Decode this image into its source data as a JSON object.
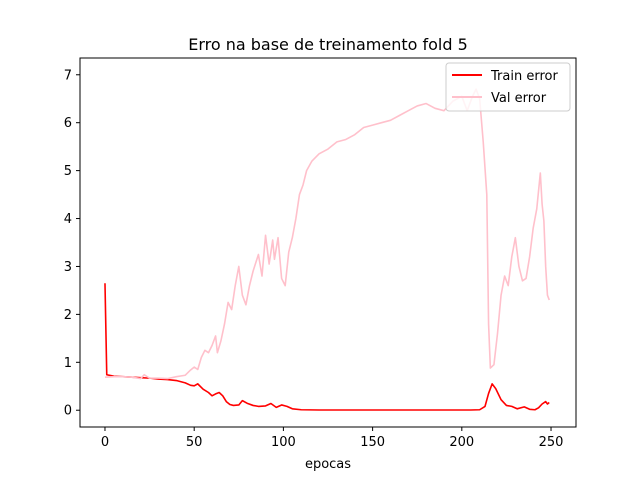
{
  "chart_data": {
    "type": "line",
    "title": "Erro na base de treinamento fold 5",
    "xlabel": "epocas",
    "ylabel": "",
    "xlim": [
      -14,
      264
    ],
    "ylim": [
      -0.35,
      7.35
    ],
    "xticks": [
      0,
      50,
      100,
      150,
      200,
      250
    ],
    "yticks": [
      0,
      1,
      2,
      3,
      4,
      5,
      6,
      7
    ],
    "legend": "top-right",
    "grid": false,
    "series": [
      {
        "name": "Train error",
        "color": "#ff0000",
        "points": [
          [
            0,
            2.65
          ],
          [
            1,
            0.74
          ],
          [
            5,
            0.71
          ],
          [
            10,
            0.7
          ],
          [
            15,
            0.69
          ],
          [
            20,
            0.68
          ],
          [
            25,
            0.67
          ],
          [
            30,
            0.65
          ],
          [
            35,
            0.64
          ],
          [
            40,
            0.62
          ],
          [
            45,
            0.57
          ],
          [
            48,
            0.52
          ],
          [
            50,
            0.51
          ],
          [
            52,
            0.55
          ],
          [
            55,
            0.44
          ],
          [
            58,
            0.37
          ],
          [
            60,
            0.3
          ],
          [
            62,
            0.34
          ],
          [
            64,
            0.37
          ],
          [
            66,
            0.3
          ],
          [
            68,
            0.18
          ],
          [
            70,
            0.12
          ],
          [
            72,
            0.1
          ],
          [
            75,
            0.11
          ],
          [
            77,
            0.2
          ],
          [
            80,
            0.14
          ],
          [
            83,
            0.1
          ],
          [
            86,
            0.08
          ],
          [
            90,
            0.09
          ],
          [
            93,
            0.14
          ],
          [
            96,
            0.06
          ],
          [
            99,
            0.11
          ],
          [
            102,
            0.08
          ],
          [
            105,
            0.03
          ],
          [
            110,
            0.01
          ],
          [
            120,
            0.005
          ],
          [
            150,
            0.005
          ],
          [
            180,
            0.005
          ],
          [
            205,
            0.005
          ],
          [
            210,
            0.01
          ],
          [
            213,
            0.08
          ],
          [
            215,
            0.35
          ],
          [
            217,
            0.55
          ],
          [
            219,
            0.45
          ],
          [
            222,
            0.22
          ],
          [
            225,
            0.1
          ],
          [
            228,
            0.08
          ],
          [
            231,
            0.03
          ],
          [
            235,
            0.07
          ],
          [
            238,
            0.02
          ],
          [
            241,
            0.01
          ],
          [
            243,
            0.05
          ],
          [
            245,
            0.13
          ],
          [
            247,
            0.18
          ],
          [
            248,
            0.13
          ],
          [
            249,
            0.16
          ]
        ]
      },
      {
        "name": "Val error",
        "color": "#ffc0cb",
        "points": [
          [
            0,
            0.69
          ],
          [
            5,
            0.7
          ],
          [
            10,
            0.7
          ],
          [
            15,
            0.69
          ],
          [
            20,
            0.66
          ],
          [
            22,
            0.74
          ],
          [
            25,
            0.67
          ],
          [
            30,
            0.67
          ],
          [
            35,
            0.66
          ],
          [
            40,
            0.7
          ],
          [
            45,
            0.73
          ],
          [
            48,
            0.84
          ],
          [
            50,
            0.9
          ],
          [
            52,
            0.85
          ],
          [
            54,
            1.1
          ],
          [
            56,
            1.25
          ],
          [
            58,
            1.2
          ],
          [
            60,
            1.35
          ],
          [
            62,
            1.55
          ],
          [
            63,
            1.2
          ],
          [
            65,
            1.45
          ],
          [
            67,
            1.8
          ],
          [
            69,
            2.25
          ],
          [
            71,
            2.1
          ],
          [
            73,
            2.6
          ],
          [
            75,
            3.0
          ],
          [
            77,
            2.4
          ],
          [
            79,
            2.2
          ],
          [
            81,
            2.6
          ],
          [
            83,
            2.9
          ],
          [
            86,
            3.25
          ],
          [
            88,
            2.8
          ],
          [
            90,
            3.65
          ],
          [
            92,
            3.05
          ],
          [
            94,
            3.55
          ],
          [
            95,
            3.15
          ],
          [
            97,
            3.6
          ],
          [
            99,
            2.75
          ],
          [
            101,
            2.6
          ],
          [
            103,
            3.3
          ],
          [
            105,
            3.6
          ],
          [
            107,
            4.0
          ],
          [
            109,
            4.5
          ],
          [
            111,
            4.7
          ],
          [
            113,
            5.0
          ],
          [
            116,
            5.2
          ],
          [
            120,
            5.35
          ],
          [
            125,
            5.45
          ],
          [
            130,
            5.6
          ],
          [
            135,
            5.65
          ],
          [
            140,
            5.75
          ],
          [
            145,
            5.9
          ],
          [
            150,
            5.95
          ],
          [
            155,
            6.0
          ],
          [
            160,
            6.05
          ],
          [
            165,
            6.15
          ],
          [
            170,
            6.25
          ],
          [
            175,
            6.35
          ],
          [
            180,
            6.4
          ],
          [
            185,
            6.3
          ],
          [
            190,
            6.25
          ],
          [
            195,
            6.45
          ],
          [
            200,
            6.55
          ],
          [
            203,
            6.25
          ],
          [
            206,
            6.55
          ],
          [
            208,
            6.7
          ],
          [
            210,
            6.5
          ],
          [
            212,
            5.6
          ],
          [
            214,
            4.5
          ],
          [
            215,
            1.8
          ],
          [
            216,
            0.88
          ],
          [
            218,
            0.95
          ],
          [
            220,
            1.6
          ],
          [
            222,
            2.4
          ],
          [
            224,
            2.8
          ],
          [
            226,
            2.6
          ],
          [
            228,
            3.2
          ],
          [
            230,
            3.6
          ],
          [
            232,
            3.0
          ],
          [
            234,
            2.7
          ],
          [
            236,
            2.75
          ],
          [
            238,
            3.2
          ],
          [
            240,
            3.8
          ],
          [
            242,
            4.2
          ],
          [
            244,
            4.95
          ],
          [
            245,
            4.3
          ],
          [
            246,
            3.95
          ],
          [
            247,
            3.0
          ],
          [
            248,
            2.4
          ],
          [
            249,
            2.3
          ]
        ]
      }
    ]
  }
}
